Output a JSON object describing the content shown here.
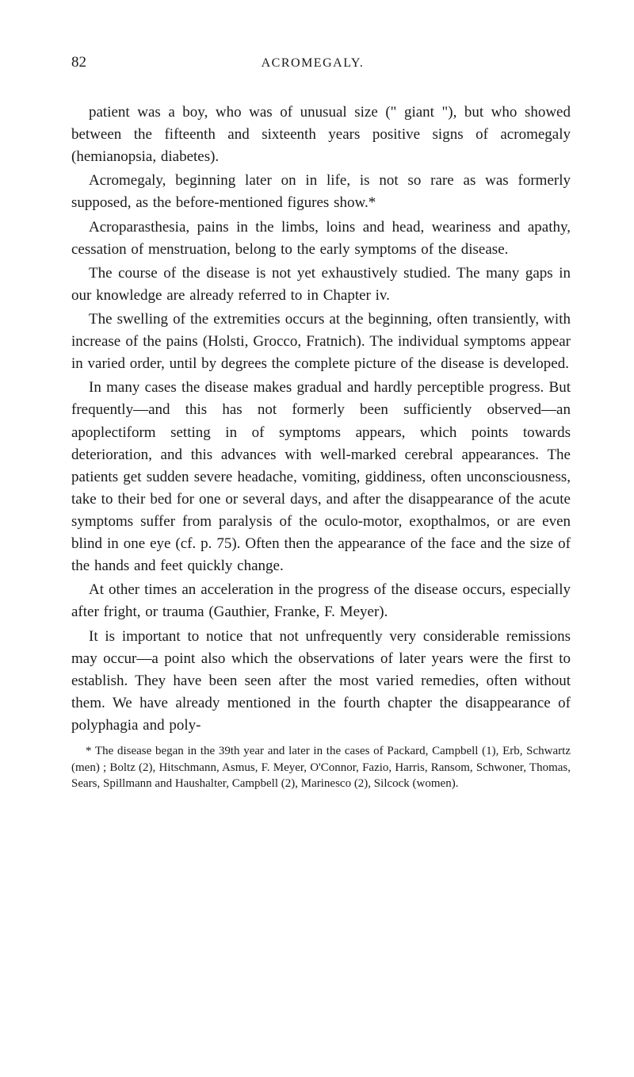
{
  "page": {
    "number": "82",
    "title": "ACROMEGALY."
  },
  "paragraphs": {
    "p1": "patient was a boy, who was of unusual size (\" giant \"), but who showed between the fifteenth and sixteenth years positive signs of acromegaly (hemianopsia, diabetes).",
    "p2": "Acromegaly, beginning later on in life, is not so rare as was formerly supposed, as the before-mentioned figures show.*",
    "p3": "Acroparasthesia, pains in the limbs, loins and head, weariness and apathy, cessation of menstruation, belong to the early symptoms of the disease.",
    "p4": "The course of the disease is not yet exhaustively studied. The many gaps in our knowledge are already referred to in Chapter iv.",
    "p5": "The swelling of the extremities occurs at the beginning, often transiently, with increase of the pains (Holsti, Grocco, Fratnich). The individual symptoms appear in varied order, until by degrees the complete picture of the disease is developed.",
    "p6": "In many cases the disease makes gradual and hardly perceptible progress. But frequently—and this has not formerly been sufficiently observed—an apoplectiform setting in of symptoms appears, which points towards deterioration, and this advances with well-marked cerebral appearances. The patients get sudden severe headache, vomiting, giddiness, often unconsciousness, take to their bed for one or several days, and after the disappearance of the acute symptoms suffer from paralysis of the oculo-motor, exopthalmos, or are even blind in one eye (cf. p. 75). Often then the appearance of the face and the size of the hands and feet quickly change.",
    "p7": "At other times an acceleration in the progress of the disease occurs, especially after fright, or trauma (Gauthier, Franke, F. Meyer).",
    "p8": "It is important to notice that not unfrequently very considerable remissions may occur—a point also which the observations of later years were the first to establish. They have been seen after the most varied remedies, often without them. We have already mentioned in the fourth chapter the disappearance of polyphagia and poly-"
  },
  "footnote": {
    "text": "* The disease began in the 39th year and later in the cases of Packard, Campbell (1), Erb, Schwartz (men) ; Boltz (2), Hitschmann, Asmus, F. Meyer, O'Connor, Fazio, Harris, Ransom, Schwoner, Thomas, Sears, Spillmann and Haushalter, Campbell (2), Marinesco (2), Silcock (women)."
  }
}
